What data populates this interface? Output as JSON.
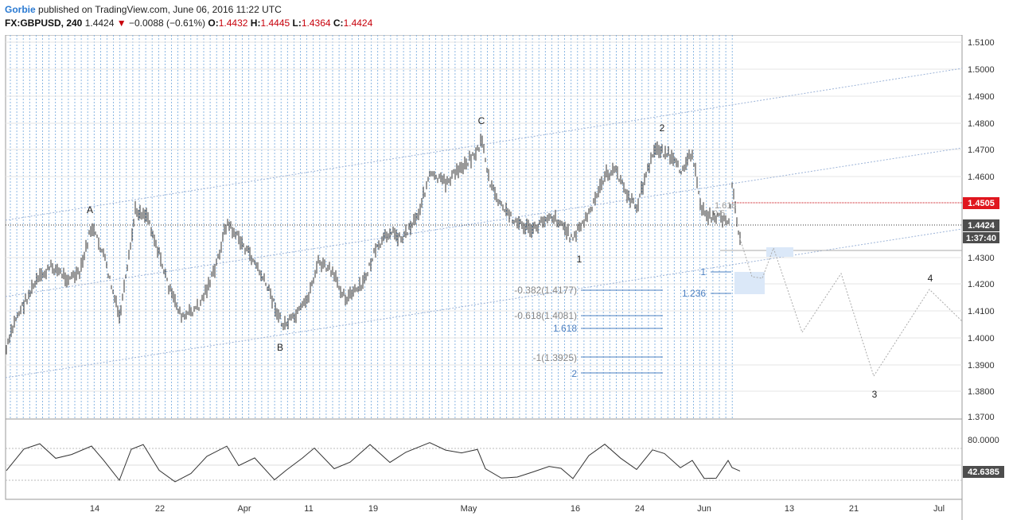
{
  "header": {
    "author": "Gorbie",
    "published": "published on TradingView.com, June 06, 2016 11:22 UTC",
    "symbol": "FX:GBPUSD, 240",
    "last": "1.4424",
    "change": "−0.0088 (−0.61%)",
    "o_label": "O:",
    "o_value": "1.4432",
    "h_label": "H:",
    "h_value": "1.4445",
    "l_label": "L:",
    "l_value": "1.4364",
    "c_label": "C:",
    "c_value": "1.4424"
  },
  "price_axis": {
    "ticks": [
      "1.5100",
      "1.5000",
      "1.4900",
      "1.4800",
      "1.4700",
      "1.4600",
      "1.4300",
      "1.4200",
      "1.4100",
      "1.4000",
      "1.3900",
      "1.3800",
      "1.3700"
    ],
    "red_tag": "1.4505",
    "last_tag": "1.4424",
    "countdown_tag": "1:37:40"
  },
  "rsi_axis": {
    "tick": "80.0000",
    "value_tag": "42.6385"
  },
  "time_axis": [
    "14",
    "22",
    "Apr",
    "11",
    "19",
    "May",
    "16",
    "24",
    "Jun",
    "13",
    "21",
    "Jul"
  ],
  "wave_labels": [
    "A",
    "B",
    "C",
    "1",
    "2",
    "3",
    "4"
  ],
  "fib_labels": {
    "f1": "-0.382(1.4177)",
    "f2": "-0.618(1.4081)",
    "f3": "1.618",
    "f4": "-1(1.3925)",
    "f5": "2",
    "f6": "1",
    "f7": "1.236",
    "f8": "1.618",
    "f9": "0.5"
  },
  "colors": {
    "up": "#2a7ad2",
    "down": "#c7000b",
    "cycle_line": "#6fa6dc",
    "channel": "#9db4d8",
    "fib_blue": "#4a7fc1",
    "fib_grey": "#888888"
  },
  "chart_data": {
    "type": "line",
    "title": "FX:GBPUSD, 240",
    "x_dates": [
      "2016-03-08",
      "2016-03-14",
      "2016-03-22",
      "2016-04-01",
      "2016-04-07",
      "2016-04-19",
      "2016-05-02",
      "2016-05-16",
      "2016-05-26",
      "2016-06-01",
      "2016-06-06"
    ],
    "price_approx": [
      1.413,
      1.44,
      1.452,
      1.406,
      1.4,
      1.435,
      1.476,
      1.433,
      1.473,
      1.45,
      1.4424
    ],
    "ylim": [
      1.37,
      1.51
    ],
    "rsi_ylim": [
      0,
      100
    ],
    "rsi_last": 42.6385
  }
}
